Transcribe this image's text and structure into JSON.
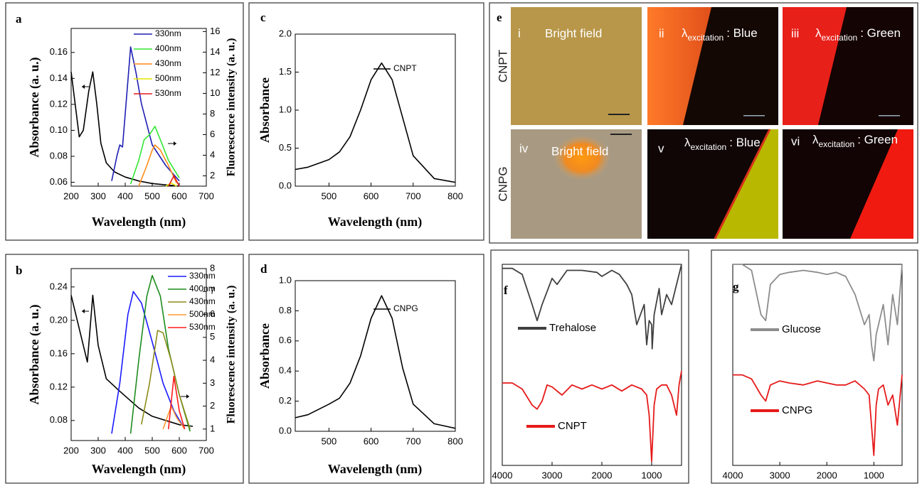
{
  "chart_data": [
    {
      "type": "line",
      "panel": "a",
      "xlabel": "Wavelength (nm)",
      "ylabel": "Absorbance (a. u.)",
      "y2label": "Fluorescence intensity (a. u.)",
      "xlim": [
        200,
        700
      ],
      "xticks": [
        200,
        300,
        400,
        500,
        600,
        700
      ],
      "ylim": [
        0.057,
        0.1785
      ],
      "yticks": [
        0.06,
        0.08,
        {
          "value": 0.1,
          "label": "0.10"
        },
        0.12,
        0.14,
        0.16
      ],
      "y2lim": [
        1,
        16.3
      ],
      "y2ticks": [
        2,
        4,
        6,
        8,
        10,
        12,
        14,
        16
      ],
      "series": [
        {
          "color": "#000000",
          "x": [
            200,
            215,
            230,
            245,
            265,
            280,
            295,
            310,
            330,
            360,
            400,
            450,
            500,
            550,
            600
          ],
          "values": [
            0.145,
            0.12,
            0.095,
            0.1,
            0.13,
            0.145,
            0.12,
            0.09,
            0.075,
            0.068,
            0.064,
            0.061,
            0.059,
            0.058,
            0.057
          ]
        },
        {
          "name": "330nm",
          "color": "#1f1fb4",
          "axis": "y2",
          "x": [
            350,
            370,
            380,
            390,
            400,
            420,
            440,
            460,
            500,
            550,
            600
          ],
          "values": [
            1.5,
            4,
            5,
            4.8,
            8,
            14.5,
            12,
            9,
            5,
            3,
            1.5
          ]
        },
        {
          "name": "400nm",
          "color": "#33e633",
          "axis": "y2",
          "x": [
            420,
            450,
            470,
            490,
            510,
            530,
            560,
            600
          ],
          "values": [
            1.2,
            3.5,
            5.5,
            6,
            6.8,
            5.5,
            3.5,
            1.8
          ]
        },
        {
          "name": "430nm",
          "color": "#ff8c1a",
          "axis": "y2",
          "x": [
            450,
            480,
            500,
            510,
            530,
            560,
            590
          ],
          "values": [
            1,
            3,
            4.5,
            5,
            4.5,
            3,
            1.3
          ]
        },
        {
          "name": "500nm",
          "color": "#e6e600",
          "axis": "y2",
          "x": [
            550,
            570,
            590
          ],
          "values": [
            1,
            1.3,
            1
          ]
        },
        {
          "name": "530nm",
          "color": "#e61a1a",
          "axis": "y2",
          "x": [
            560,
            580,
            600
          ],
          "values": [
            1,
            2,
            1
          ]
        }
      ]
    },
    {
      "type": "line",
      "panel": "b",
      "xlabel": "Wavelength (nm)",
      "ylabel": "Absorbance (a. u.)",
      "y2label": "Fluorescence intensity (a. u.)",
      "xlim": [
        200,
        700
      ],
      "xticks": [
        200,
        300,
        400,
        500,
        600,
        700
      ],
      "ylim": [
        0.056,
        0.262
      ],
      "yticks": [
        0.08,
        0.12,
        0.16,
        {
          "value": 0.2,
          "label": "0.20"
        },
        0.24
      ],
      "y2lim": [
        0.5,
        8
      ],
      "y2ticks": [
        1,
        2,
        3,
        4,
        5,
        6,
        7,
        8
      ],
      "series": [
        {
          "color": "#000000",
          "x": [
            200,
            230,
            260,
            280,
            300,
            330,
            380,
            450,
            500,
            600,
            650
          ],
          "values": [
            0.23,
            0.19,
            0.15,
            0.23,
            0.17,
            0.13,
            0.115,
            0.095,
            0.085,
            0.075,
            0.073
          ]
        },
        {
          "name": "330nm",
          "color": "#1a1aff",
          "axis": "y2",
          "x": [
            350,
            380,
            410,
            430,
            460,
            500,
            540,
            580,
            620
          ],
          "values": [
            0.8,
            3,
            6,
            7,
            6.5,
            4.8,
            3,
            1.8,
            1
          ]
        },
        {
          "name": "400nm",
          "color": "#1f8c1f",
          "axis": "y2",
          "x": [
            420,
            450,
            480,
            500,
            530,
            560,
            600,
            640
          ],
          "values": [
            0.8,
            4,
            6.8,
            7.7,
            6.8,
            4.5,
            2.5,
            0.9
          ]
        },
        {
          "name": "430nm",
          "color": "#8c8c1a",
          "axis": "y2",
          "x": [
            460,
            490,
            520,
            540,
            570,
            600,
            640
          ],
          "values": [
            1.2,
            3,
            5.3,
            5.2,
            4,
            2.5,
            1
          ]
        },
        {
          "name": "500nm",
          "color": "#ff9933",
          "axis": "y2",
          "x": [
            540,
            570,
            590,
            620
          ],
          "values": [
            1,
            2,
            1.5,
            1
          ]
        },
        {
          "name": "530nm",
          "color": "#ff1a1a",
          "axis": "y2",
          "x": [
            560,
            580,
            600,
            620
          ],
          "values": [
            1,
            3.3,
            1.8,
            1
          ]
        }
      ]
    },
    {
      "type": "line",
      "panel": "c",
      "xlabel": "Wavelength (nm)",
      "ylabel": "Absorbance",
      "xlim": [
        420,
        800
      ],
      "xticks": [
        500,
        600,
        700,
        800
      ],
      "ylim": [
        0,
        2
      ],
      "yticks": [
        {
          "value": 0,
          "label": "0.0"
        },
        0.5,
        {
          "value": 1,
          "label": "1.0"
        },
        1.5,
        {
          "value": 2,
          "label": "2.0"
        }
      ],
      "series": [
        {
          "name": "CNPT",
          "color": "#000000",
          "x": [
            420,
            450,
            500,
            525,
            550,
            575,
            600,
            625,
            650,
            675,
            700,
            750,
            800
          ],
          "values": [
            0.22,
            0.25,
            0.35,
            0.45,
            0.65,
            1.0,
            1.4,
            1.62,
            1.4,
            0.9,
            0.4,
            0.1,
            0.05
          ]
        }
      ]
    },
    {
      "type": "line",
      "panel": "d",
      "xlabel": "Wavelength (nm)",
      "ylabel": "Absorbance",
      "xlim": [
        420,
        800
      ],
      "xticks": [
        500,
        600,
        700,
        800
      ],
      "ylim": [
        0,
        1
      ],
      "yticks": [
        {
          "value": 0,
          "label": "0.0"
        },
        0.2,
        0.4,
        0.6,
        0.8,
        {
          "value": 1,
          "label": "1.0"
        }
      ],
      "series": [
        {
          "name": "CNPG",
          "color": "#000000",
          "x": [
            420,
            450,
            500,
            525,
            550,
            575,
            600,
            625,
            650,
            675,
            700,
            750,
            800
          ],
          "values": [
            0.09,
            0.11,
            0.18,
            0.22,
            0.32,
            0.5,
            0.75,
            0.9,
            0.75,
            0.42,
            0.18,
            0.05,
            0.02
          ]
        }
      ]
    },
    {
      "type": "line",
      "panel": "f",
      "xlim": [
        4000,
        400
      ],
      "xticks": [
        4000,
        3000,
        2000,
        1000
      ],
      "ylim": [
        0,
        100
      ],
      "series": [
        {
          "name": "Trehalose",
          "color": "#404040",
          "x": [
            4000,
            3800,
            3600,
            3400,
            3300,
            3200,
            3000,
            2900,
            2700,
            2400,
            2100,
            2000,
            1800,
            1650,
            1500,
            1400,
            1300,
            1150,
            1100,
            1050,
            1000,
            990,
            950,
            850,
            800,
            700,
            600,
            500,
            400
          ],
          "values": [
            98,
            98,
            95,
            80,
            72,
            80,
            93,
            90,
            97,
            97,
            96,
            94,
            97,
            95,
            90,
            85,
            70,
            80,
            60,
            72,
            70,
            58,
            75,
            88,
            75,
            85,
            80,
            90,
            100
          ]
        },
        {
          "name": "CNPT",
          "color": "#e61a1a",
          "x": [
            4000,
            3800,
            3600,
            3400,
            3300,
            3200,
            3100,
            3000,
            2800,
            2600,
            2400,
            2200,
            2000,
            1800,
            1600,
            1400,
            1200,
            1100,
            1050,
            1000,
            950,
            900,
            800,
            700,
            600,
            500,
            450,
            400
          ],
          "values": [
            41,
            41,
            38,
            30,
            28,
            32,
            40,
            39,
            35,
            40,
            38,
            40,
            38,
            40,
            37,
            40,
            38,
            35,
            25,
            2,
            30,
            38,
            40,
            40,
            35,
            25,
            40,
            47
          ]
        }
      ]
    },
    {
      "type": "line",
      "panel": "g",
      "xlim": [
        4000,
        400
      ],
      "xticks": [
        4000,
        3000,
        2000,
        1000
      ],
      "ylim": [
        0,
        100
      ],
      "series": [
        {
          "name": "Glucose",
          "color": "#8c8c8c",
          "x": [
            4000,
            3800,
            3600,
            3400,
            3300,
            3200,
            3000,
            2800,
            2500,
            2200,
            2000,
            1800,
            1600,
            1400,
            1200,
            1100,
            1050,
            1000,
            950,
            900,
            800,
            700,
            600,
            500,
            400
          ],
          "values": [
            100,
            100,
            97,
            75,
            72,
            90,
            95,
            96,
            97,
            96,
            95,
            96,
            94,
            85,
            70,
            75,
            60,
            52,
            65,
            70,
            80,
            60,
            85,
            70,
            100
          ]
        },
        {
          "name": "CNPG",
          "color": "#e61a1a",
          "x": [
            4000,
            3800,
            3600,
            3400,
            3300,
            3200,
            3000,
            2800,
            2500,
            2200,
            2000,
            1800,
            1600,
            1400,
            1200,
            1100,
            1050,
            1000,
            950,
            900,
            800,
            700,
            600,
            500,
            400
          ],
          "values": [
            45,
            45,
            43,
            35,
            32,
            40,
            42,
            41,
            40,
            42,
            41,
            40,
            40,
            42,
            38,
            35,
            20,
            5,
            30,
            38,
            40,
            30,
            35,
            20,
            45
          ]
        }
      ]
    }
  ],
  "micrographs": {
    "panel": "e",
    "rows": [
      "CNPT",
      "CNPG"
    ],
    "tiles": [
      {
        "numeral": "i",
        "caption": "Bright field"
      },
      {
        "numeral": "ii",
        "symbol": "λ",
        "subscript": "excitation",
        "caption": ": Blue"
      },
      {
        "numeral": "iii",
        "symbol": "λ",
        "subscript": "excitation",
        "caption": ": Green"
      },
      {
        "numeral": "iv",
        "caption": "Bright field"
      },
      {
        "numeral": "v",
        "symbol": "λ",
        "subscript": "excitation",
        "caption": ": Blue"
      },
      {
        "numeral": "vi",
        "symbol": "λ",
        "subscript": "excitation",
        "caption": ": Green"
      }
    ]
  }
}
